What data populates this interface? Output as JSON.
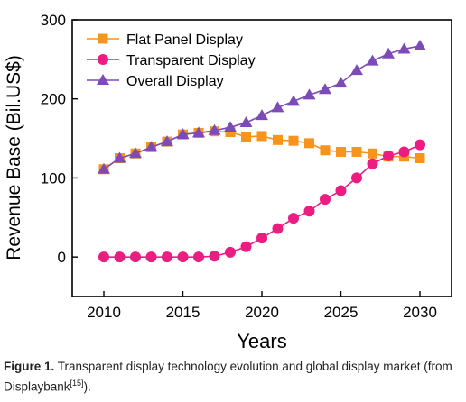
{
  "chart_data": {
    "type": "line",
    "xlabel": "Years",
    "ylabel": "Revenue Base (Bil.US$)",
    "xlim": [
      2008,
      2032
    ],
    "ylim": [
      -50,
      300
    ],
    "xticks": [
      2010,
      2015,
      2020,
      2025,
      2030
    ],
    "yticks": [
      0,
      100,
      200,
      300
    ],
    "xtick_labels": [
      "2010",
      "2015",
      "2020",
      "2025",
      "2030"
    ],
    "ytick_labels": [
      "0",
      "100",
      "200",
      "300"
    ],
    "grid": false,
    "legend_position": "top-left",
    "x": [
      2010,
      2011,
      2012,
      2013,
      2014,
      2015,
      2016,
      2017,
      2018,
      2019,
      2020,
      2021,
      2022,
      2023,
      2024,
      2025,
      2026,
      2027,
      2028,
      2029,
      2030
    ],
    "series": [
      {
        "name": "Flat Panel Display",
        "color": "#f7941d",
        "marker": "square",
        "values": [
          111,
          125,
          131,
          139,
          146,
          155,
          157,
          159,
          158,
          152,
          153,
          148,
          147,
          144,
          135,
          133,
          133,
          131,
          127,
          127,
          125
        ]
      },
      {
        "name": "Transparent Display",
        "color": "#ec1c80",
        "marker": "circle",
        "values": [
          0,
          0,
          0,
          0,
          0,
          0,
          0,
          1,
          6,
          13,
          24,
          36,
          49,
          58,
          73,
          84,
          100,
          118,
          128,
          133,
          142
        ]
      },
      {
        "name": "Overall Display",
        "color": "#7d4bb8",
        "marker": "triangle",
        "values": [
          111,
          125,
          131,
          139,
          146,
          155,
          157,
          160,
          164,
          170,
          179,
          189,
          197,
          205,
          212,
          220,
          236,
          248,
          257,
          263,
          267
        ]
      }
    ]
  },
  "caption": {
    "label": "Figure 1.",
    "text": " Transparent display technology evolution and global display market (from Displaybank",
    "ref": "[15]",
    "end": ")."
  }
}
